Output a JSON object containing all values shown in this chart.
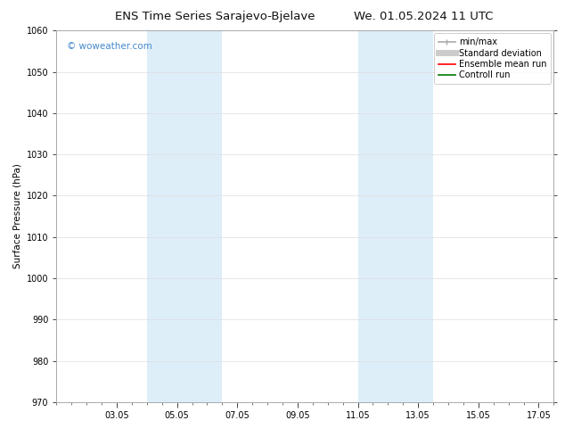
{
  "title": "ENS Time Series Sarajevo-Bjelave",
  "title2": "We. 01.05.2024 11 UTC",
  "ylabel": "Surface Pressure (hPa)",
  "ylim": [
    970,
    1060
  ],
  "yticks": [
    970,
    980,
    990,
    1000,
    1010,
    1020,
    1030,
    1040,
    1050,
    1060
  ],
  "xtick_labels": [
    "03.05",
    "05.05",
    "07.05",
    "09.05",
    "11.05",
    "13.05",
    "15.05",
    "17.05"
  ],
  "xtick_positions": [
    2,
    4,
    6,
    8,
    10,
    12,
    14,
    16
  ],
  "xlim": [
    0,
    16.5
  ],
  "shade_bands": [
    {
      "x_start": 3.0,
      "x_end": 5.5
    },
    {
      "x_start": 10.0,
      "x_end": 12.5
    }
  ],
  "shade_color": "#ddeef9",
  "watermark_text": "© woweather.com",
  "watermark_color": "#4488cc",
  "background_color": "#ffffff",
  "legend_items": [
    {
      "label": "min/max",
      "color": "#aaaaaa",
      "lw": 1.2
    },
    {
      "label": "Standard deviation",
      "color": "#cccccc",
      "lw": 5
    },
    {
      "label": "Ensemble mean run",
      "color": "#ff0000",
      "lw": 1.2
    },
    {
      "label": "Controll run",
      "color": "#007700",
      "lw": 1.2
    }
  ],
  "grid_color": "#dddddd",
  "spine_color": "#aaaaaa",
  "tick_color": "#444444",
  "font_size_title": 9.5,
  "font_size_axis": 7.5,
  "font_size_tick": 7,
  "font_size_legend": 7,
  "font_size_watermark": 7.5,
  "minor_tick_count": 4
}
